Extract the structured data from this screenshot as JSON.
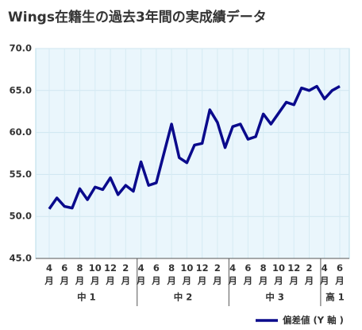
{
  "chart_data": {
    "type": "line",
    "title": "Wings在籍生の過去3年間の実成績データ",
    "categories": [
      "4月",
      null,
      "6月",
      null,
      "8月",
      null,
      "10月",
      null,
      "12月",
      null,
      "2月",
      null,
      "4月",
      null,
      "6月",
      null,
      "8月",
      null,
      "10月",
      null,
      "12月",
      null,
      "2月",
      null,
      "4月",
      null,
      "6月",
      null,
      "8月",
      null,
      "10月",
      null,
      "12月",
      null,
      "2月",
      null,
      "4月",
      null,
      "6月"
    ],
    "groups": [
      "中 1",
      "中 2",
      "中 3",
      "高 1"
    ],
    "series": [
      {
        "name": "偏差値 (Y 軸 )",
        "color": "#0a0a8c",
        "values": [
          50.9,
          52.2,
          51.2,
          51.0,
          53.3,
          52.0,
          53.5,
          53.2,
          54.6,
          52.6,
          53.7,
          53.0,
          56.5,
          53.7,
          54.0,
          57.5,
          61.0,
          57.0,
          56.4,
          58.5,
          58.7,
          62.7,
          61.2,
          58.2,
          60.7,
          61.0,
          59.2,
          59.5,
          62.2,
          61.0,
          62.3,
          63.6,
          63.3,
          65.3,
          65.0,
          65.5,
          64.0,
          65.0,
          65.5
        ]
      }
    ],
    "ylim": [
      45,
      70
    ],
    "yticks": [
      {
        "value": 45,
        "label": "45.0"
      },
      {
        "value": 50,
        "label": "50.0"
      },
      {
        "value": 55,
        "label": "55.0"
      },
      {
        "value": 60,
        "label": "60.0"
      },
      {
        "value": 65,
        "label": "65.0"
      },
      {
        "value": 70,
        "label": "70.0"
      }
    ],
    "grid": true,
    "legend": "bottom-right"
  }
}
